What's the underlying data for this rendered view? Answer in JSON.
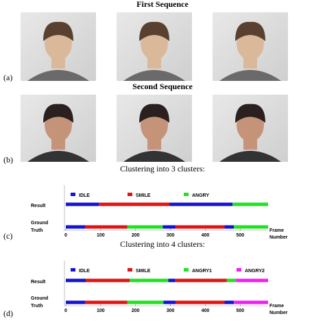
{
  "panels": [
    {
      "label": "(a)",
      "title": "First Sequence"
    },
    {
      "label": "(b)",
      "title": "Second Sequence"
    }
  ],
  "charts": [
    {
      "label": "(c)",
      "title": "Clustering into 3 clusters:",
      "legend": [
        {
          "name": "IDLE",
          "color": "#1414d2"
        },
        {
          "name": "SMILE",
          "color": "#e01414"
        },
        {
          "name": "ANGRY",
          "color": "#22e022"
        }
      ],
      "rows": [
        {
          "name": [
            "Result"
          ],
          "segments": [
            {
              "start": 0,
              "end": 95,
              "color": "#1414d2"
            },
            {
              "start": 95,
              "end": 297,
              "color": "#e01414"
            },
            {
              "start": 297,
              "end": 478,
              "color": "#1414d2"
            },
            {
              "start": 478,
              "end": 580,
              "color": "#22e022"
            }
          ]
        },
        {
          "name": [
            "Ground",
            "Truth"
          ],
          "segments": [
            {
              "start": 0,
              "end": 55,
              "color": "#1414d2"
            },
            {
              "start": 55,
              "end": 176,
              "color": "#e01414"
            },
            {
              "start": 176,
              "end": 278,
              "color": "#22e022"
            },
            {
              "start": 278,
              "end": 315,
              "color": "#1414d2"
            },
            {
              "start": 315,
              "end": 455,
              "color": "#e01414"
            },
            {
              "start": 455,
              "end": 482,
              "color": "#1414d2"
            },
            {
              "start": 482,
              "end": 580,
              "color": "#22e022"
            }
          ]
        }
      ],
      "xlim": [
        0,
        580
      ],
      "xticks": [
        0,
        100,
        200,
        300,
        400,
        500
      ],
      "x_label": [
        "Frame",
        "Number"
      ]
    },
    {
      "label": "(d)",
      "title": "Clustering into 4 clusters:",
      "legend": [
        {
          "name": "IDLE",
          "color": "#1414d2"
        },
        {
          "name": "SMILE",
          "color": "#e01414"
        },
        {
          "name": "ANGRY1",
          "color": "#22e022"
        },
        {
          "name": "ANGRY2",
          "color": "#f020f0"
        }
      ],
      "rows": [
        {
          "name": [
            "Result"
          ],
          "segments": [
            {
              "start": 0,
              "end": 57,
              "color": "#1414d2"
            },
            {
              "start": 57,
              "end": 183,
              "color": "#e01414"
            },
            {
              "start": 183,
              "end": 294,
              "color": "#22e022"
            },
            {
              "start": 294,
              "end": 314,
              "color": "#1414d2"
            },
            {
              "start": 314,
              "end": 461,
              "color": "#e01414"
            },
            {
              "start": 461,
              "end": 488,
              "color": "#22e022"
            },
            {
              "start": 488,
              "end": 580,
              "color": "#f020f0"
            }
          ]
        },
        {
          "name": [
            "Ground",
            "Truth"
          ],
          "segments": [
            {
              "start": 0,
              "end": 55,
              "color": "#1414d2"
            },
            {
              "start": 55,
              "end": 176,
              "color": "#e01414"
            },
            {
              "start": 176,
              "end": 280,
              "color": "#22e022"
            },
            {
              "start": 280,
              "end": 315,
              "color": "#1414d2"
            },
            {
              "start": 315,
              "end": 455,
              "color": "#e01414"
            },
            {
              "start": 455,
              "end": 482,
              "color": "#1414d2"
            },
            {
              "start": 482,
              "end": 580,
              "color": "#f020f0"
            }
          ]
        }
      ],
      "xlim": [
        0,
        580
      ],
      "xticks": [
        0,
        100,
        200,
        300,
        400,
        500
      ],
      "x_label": [
        "Frame",
        "Number"
      ]
    }
  ]
}
